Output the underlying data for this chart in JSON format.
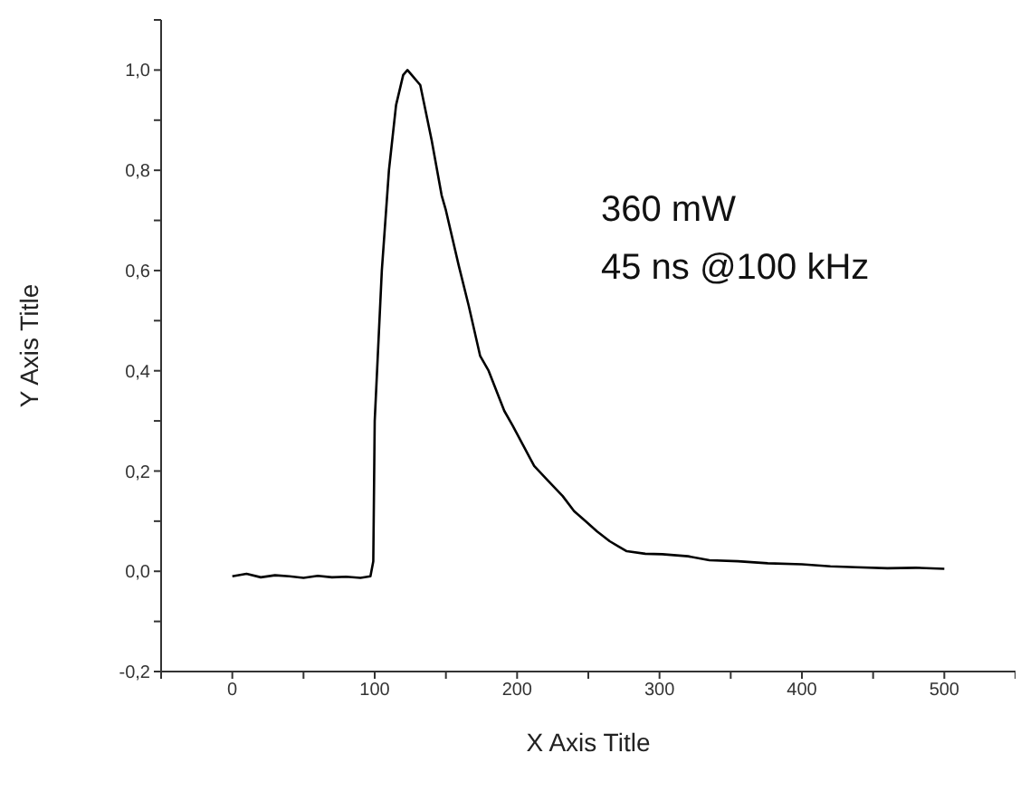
{
  "chart_data": {
    "type": "line",
    "xlabel": "X Axis Title",
    "ylabel": "Y Axis Title",
    "annotations": [
      "360 mW",
      "45 ns @100 kHz"
    ],
    "xlim": [
      -50,
      550
    ],
    "xticks": [
      {
        "value": -50,
        "label": null
      },
      0,
      {
        "value": 50,
        "label": null
      },
      100,
      {
        "value": 150,
        "label": null
      },
      200,
      {
        "value": 250,
        "label": null
      },
      300,
      {
        "value": 350,
        "label": null
      },
      400,
      {
        "value": 450,
        "label": null
      },
      500,
      {
        "value": 550,
        "label": null
      }
    ],
    "ylim": [
      -0.2,
      1.1
    ],
    "yticks": [
      {
        "value": -0.2,
        "label": "-0,2"
      },
      {
        "value": -0.1,
        "label": null
      },
      {
        "value": 0,
        "label": "0,0"
      },
      {
        "value": 0.1,
        "label": null
      },
      {
        "value": 0.2,
        "label": "0,2"
      },
      {
        "value": 0.3,
        "label": null
      },
      {
        "value": 0.4,
        "label": "0,4"
      },
      {
        "value": 0.5,
        "label": null
      },
      {
        "value": 0.6,
        "label": "0,6"
      },
      {
        "value": 0.7,
        "label": null
      },
      {
        "value": 0.8,
        "label": "0,8"
      },
      {
        "value": 0.9,
        "label": null
      },
      {
        "value": 1,
        "label": "1,0"
      },
      {
        "value": 1.1,
        "label": null
      }
    ],
    "marker": "none",
    "line_style": "solid",
    "series": [
      {
        "color": "#000000",
        "x": [
          0,
          10,
          20,
          30,
          40,
          50,
          60,
          70,
          80,
          90,
          97,
          99,
          100,
          105,
          110,
          115,
          120,
          123,
          126,
          132,
          140,
          147,
          150,
          159,
          166,
          174,
          180,
          191,
          197,
          212,
          222,
          232,
          240,
          248,
          256,
          265,
          271,
          277,
          290,
          302,
          320,
          335,
          355,
          376,
          400,
          420,
          438,
          460,
          480,
          500
        ],
        "values": [
          -0.01,
          -0.005,
          -0.012,
          -0.008,
          -0.01,
          -0.013,
          -0.009,
          -0.012,
          -0.011,
          -0.013,
          -0.01,
          0.02,
          0.3,
          0.6,
          0.8,
          0.93,
          0.99,
          1.0,
          0.99,
          0.97,
          0.86,
          0.75,
          0.72,
          0.61,
          0.53,
          0.43,
          0.4,
          0.32,
          0.29,
          0.21,
          0.18,
          0.15,
          0.12,
          0.1,
          0.08,
          0.06,
          0.05,
          0.04,
          0.035,
          0.034,
          0.03,
          0.022,
          0.02,
          0.016,
          0.014,
          0.01,
          0.008,
          0.006,
          0.007,
          0.005
        ]
      }
    ]
  }
}
